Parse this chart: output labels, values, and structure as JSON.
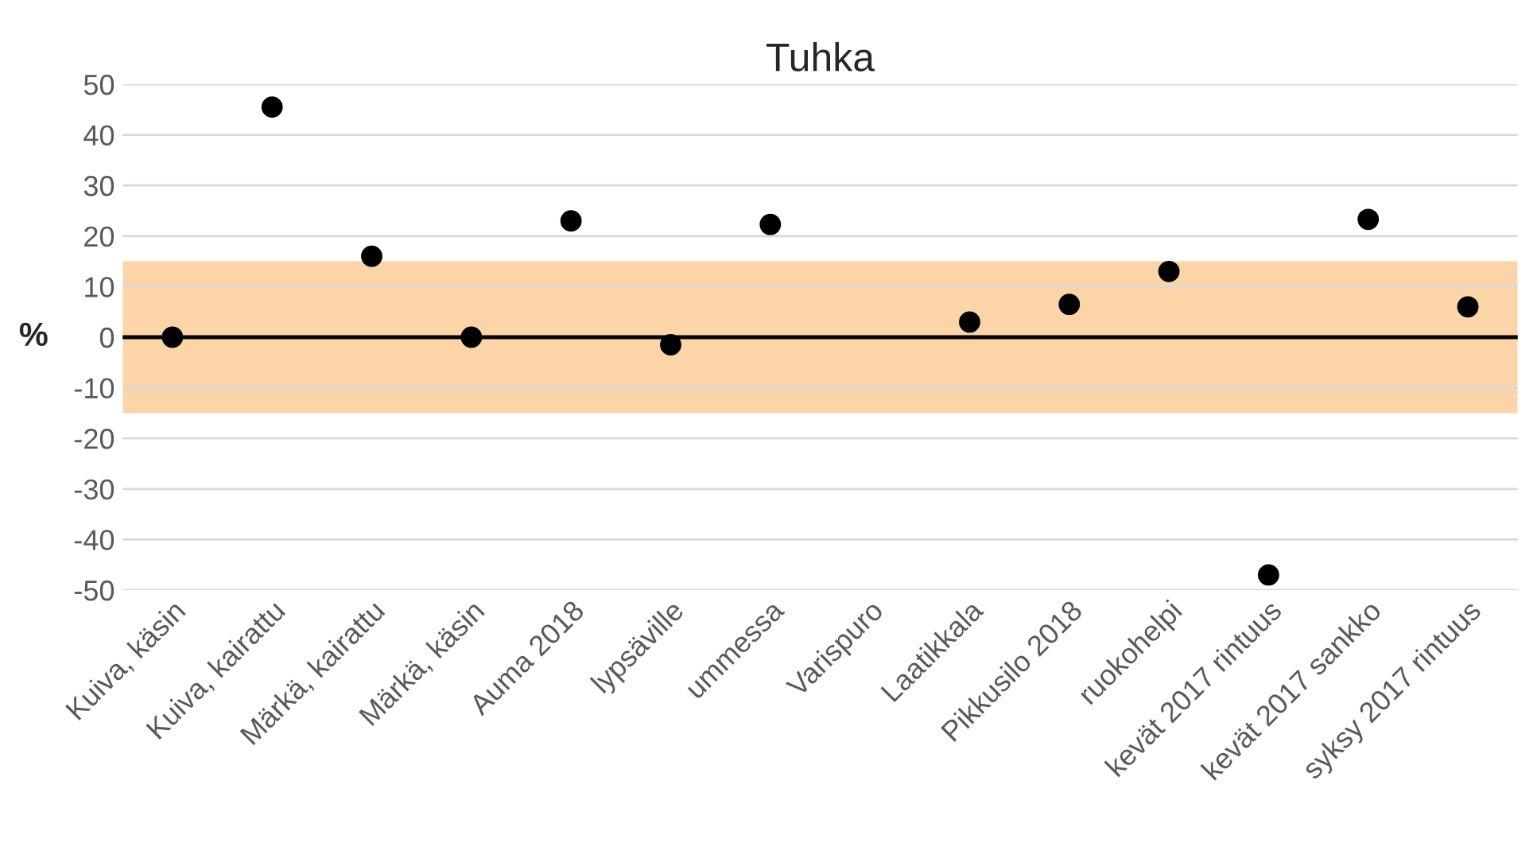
{
  "chart_data": {
    "type": "scatter",
    "title": "Tuhka",
    "ylabel": "%",
    "categories": [
      "Kuiva, käsin",
      "Kuiva, kairattu",
      "Märkä, kairattu",
      "Märkä, käsin",
      "Auma 2018",
      "lypsäville",
      "ummessa",
      "Varispuro",
      "Laatikkala",
      "Pikkusilo 2018",
      "ruokohelpi",
      "kevät 2017 rintuus",
      "kevät 2017 sankko",
      "syksy 2017 rintuus"
    ],
    "series": [
      {
        "color": "#000000",
        "values": [
          0,
          45.5,
          16,
          0,
          23,
          -1.5,
          22.3,
          null,
          3,
          6.5,
          13,
          -47,
          23.3,
          6
        ]
      }
    ],
    "ylim": [
      -50,
      50
    ],
    "yticks": [
      -50,
      -40,
      -30,
      -20,
      -10,
      0,
      10,
      20,
      30,
      40,
      50
    ],
    "grid": "y",
    "marker": "circle",
    "legend": false,
    "ref_lines": [
      {
        "axis": "y",
        "value": 0,
        "color": "#000000"
      }
    ],
    "bands": [
      {
        "axis": "y",
        "from": -15,
        "to": 15,
        "color": "#fbd5a8"
      }
    ]
  }
}
